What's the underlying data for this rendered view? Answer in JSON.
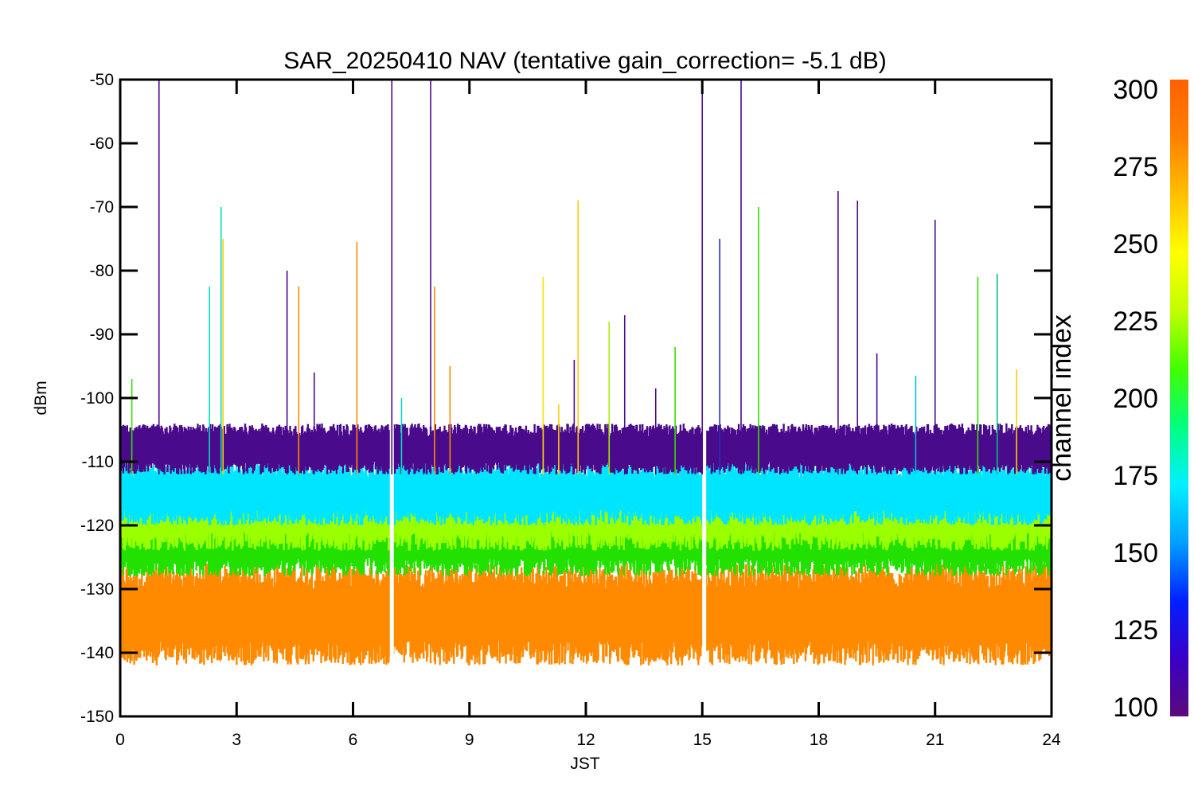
{
  "chart_data": {
    "type": "line",
    "title": "SAR_20250410 NAV (tentative gain_correction= -5.1 dB)",
    "xlabel": "JST",
    "ylabel": "dBm",
    "xlim": [
      0,
      24
    ],
    "ylim": [
      -150,
      -50
    ],
    "xticks": [
      0,
      3,
      6,
      9,
      12,
      15,
      18,
      21,
      24
    ],
    "yticks": [
      -50,
      -60,
      -70,
      -80,
      -90,
      -100,
      -110,
      -120,
      -130,
      -140,
      -150
    ],
    "grid": false,
    "data_gaps_jst": [
      7.0,
      15.05
    ],
    "bands": [
      {
        "name": "channel 100-110",
        "color": "#4a0a8c",
        "y_range": [
          -112,
          -104
        ]
      },
      {
        "name": "channel 170-190",
        "color": "#00e5ff",
        "y_range": [
          -120,
          -110
        ]
      },
      {
        "name": "channel 250-265",
        "color": "#9aff00",
        "y_range": [
          -124,
          -112
        ]
      },
      {
        "name": "channel 220-240",
        "color": "#22e000",
        "y_range": [
          -128,
          -116
        ]
      },
      {
        "name": "channel 285-300",
        "color": "#ff8a00",
        "y_range": [
          -142,
          -126
        ]
      }
    ],
    "spikes": [
      {
        "x": 0.3,
        "y": -97,
        "color": "#33e000"
      },
      {
        "x": 1.0,
        "y": -50,
        "color": "#4a0a8c"
      },
      {
        "x": 2.3,
        "y": -82.5,
        "color": "#00e0c0"
      },
      {
        "x": 2.6,
        "y": -70,
        "color": "#00e0c0"
      },
      {
        "x": 2.65,
        "y": -75,
        "color": "#ffcc00"
      },
      {
        "x": 4.3,
        "y": -80,
        "color": "#4a0a8c"
      },
      {
        "x": 4.6,
        "y": -82.5,
        "color": "#ff8a00"
      },
      {
        "x": 5.0,
        "y": -96,
        "color": "#4a0a8c"
      },
      {
        "x": 6.1,
        "y": -75.5,
        "color": "#ff8a00"
      },
      {
        "x": 7.0,
        "y": -50,
        "color": "#4a0a8c"
      },
      {
        "x": 7.25,
        "y": -100,
        "color": "#00e0c0"
      },
      {
        "x": 8.0,
        "y": -50,
        "color": "#4a0a8c"
      },
      {
        "x": 8.1,
        "y": -82.5,
        "color": "#ff8a00"
      },
      {
        "x": 8.5,
        "y": -95,
        "color": "#ff8a00"
      },
      {
        "x": 10.9,
        "y": -81,
        "color": "#ffdd00"
      },
      {
        "x": 11.3,
        "y": -101,
        "color": "#ffcc00"
      },
      {
        "x": 11.7,
        "y": -94,
        "color": "#4a0a8c"
      },
      {
        "x": 11.8,
        "y": -69,
        "color": "#ffcc00"
      },
      {
        "x": 12.6,
        "y": -88,
        "color": "#aaee00"
      },
      {
        "x": 13.0,
        "y": -87,
        "color": "#4a0a8c"
      },
      {
        "x": 13.8,
        "y": -98.5,
        "color": "#4a0a8c"
      },
      {
        "x": 14.3,
        "y": -92,
        "color": "#33e000"
      },
      {
        "x": 15.0,
        "y": -50,
        "color": "#4a0a8c"
      },
      {
        "x": 15.45,
        "y": -75,
        "color": "#2030c0"
      },
      {
        "x": 16.0,
        "y": -50,
        "color": "#4a0a8c"
      },
      {
        "x": 16.45,
        "y": -70,
        "color": "#33e000"
      },
      {
        "x": 18.5,
        "y": -67.5,
        "color": "#4a0a8c"
      },
      {
        "x": 19.0,
        "y": -69,
        "color": "#4a0a8c"
      },
      {
        "x": 19.5,
        "y": -93,
        "color": "#4a0a8c"
      },
      {
        "x": 20.5,
        "y": -96.5,
        "color": "#00c0e0"
      },
      {
        "x": 21.0,
        "y": -72,
        "color": "#4a0a8c"
      },
      {
        "x": 22.1,
        "y": -81,
        "color": "#33e000"
      },
      {
        "x": 22.6,
        "y": -80.5,
        "color": "#00c080"
      },
      {
        "x": 23.1,
        "y": -95.5,
        "color": "#ffcc00"
      }
    ],
    "colorbar": {
      "label": "channel index",
      "min": 100,
      "max": 300,
      "ticks": [
        "300",
        "275",
        "250",
        "225",
        "200",
        "175",
        "150",
        "125",
        "100"
      ],
      "colors": [
        "#5b0a7a",
        "#3a00c8",
        "#0020ff",
        "#00a0ff",
        "#00f0ff",
        "#00ff80",
        "#40ff00",
        "#c0ff00",
        "#ffff00",
        "#ffc000",
        "#ff8000",
        "#ff6000"
      ]
    }
  }
}
